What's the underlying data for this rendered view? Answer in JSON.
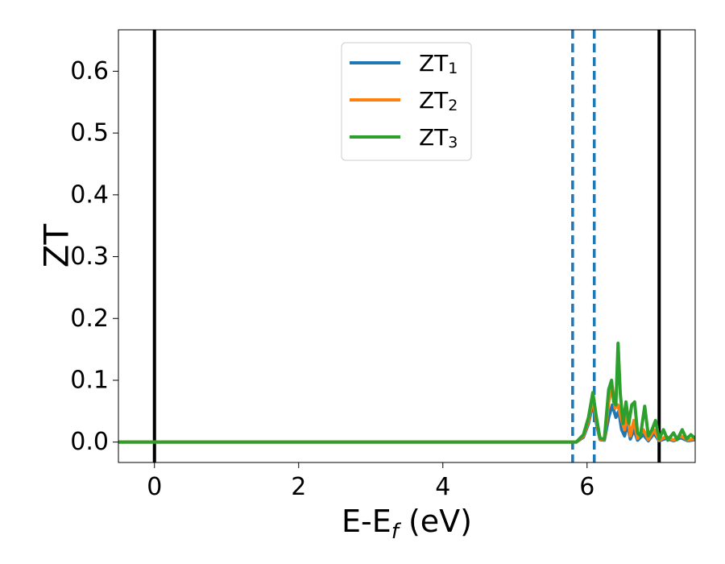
{
  "chart_data": {
    "type": "line",
    "xlabel_main": "E-E",
    "xlabel_sub": "f",
    "xlabel_unit": " (eV)",
    "ylabel": "ZT",
    "xlim": [
      -0.5,
      7.5
    ],
    "ylim": [
      -0.033,
      0.667
    ],
    "xticks": [
      0,
      2,
      4,
      6
    ],
    "xtick_labels": [
      "0",
      "2",
      "4",
      "6"
    ],
    "yticks": [
      0.0,
      0.1,
      0.2,
      0.3,
      0.4,
      0.5,
      0.6
    ],
    "ytick_labels": [
      "0.0",
      "0.1",
      "0.2",
      "0.3",
      "0.4",
      "0.5",
      "0.6"
    ],
    "grid": false,
    "legend_position": "top-center",
    "vlines": [
      {
        "x": 0.0,
        "style": "solid",
        "color": "#000000"
      },
      {
        "x": 7.0,
        "style": "solid",
        "color": "#000000"
      },
      {
        "x": 5.8,
        "style": "dashed",
        "color": "#1f77b4"
      },
      {
        "x": 6.1,
        "style": "dashed",
        "color": "#1f77b4"
      }
    ],
    "series": [
      {
        "name_main": "ZT",
        "name_sub": "1",
        "color": "#1f77b4",
        "points": [
          [
            -0.5,
            0
          ],
          [
            5.6,
            0
          ],
          [
            5.85,
            0.0
          ],
          [
            5.95,
            0.008
          ],
          [
            6.02,
            0.03
          ],
          [
            6.08,
            0.062
          ],
          [
            6.13,
            0.03
          ],
          [
            6.18,
            0.004
          ],
          [
            6.24,
            0.003
          ],
          [
            6.3,
            0.04
          ],
          [
            6.35,
            0.06
          ],
          [
            6.4,
            0.04
          ],
          [
            6.44,
            0.05
          ],
          [
            6.48,
            0.02
          ],
          [
            6.52,
            0.01
          ],
          [
            6.56,
            0.03
          ],
          [
            6.6,
            0.005
          ],
          [
            6.65,
            0.02
          ],
          [
            6.7,
            0.003
          ],
          [
            6.78,
            0.012
          ],
          [
            6.85,
            0.002
          ],
          [
            6.93,
            0.014
          ],
          [
            7.0,
            0.002
          ],
          [
            7.1,
            0.006
          ],
          [
            7.2,
            0.002
          ],
          [
            7.3,
            0.007
          ],
          [
            7.4,
            0.002
          ],
          [
            7.5,
            0.004
          ]
        ]
      },
      {
        "name_main": "ZT",
        "name_sub": "2",
        "color": "#ff7f0e",
        "points": [
          [
            -0.5,
            0
          ],
          [
            5.6,
            0
          ],
          [
            5.85,
            0.0
          ],
          [
            5.95,
            0.01
          ],
          [
            6.02,
            0.035
          ],
          [
            6.08,
            0.07
          ],
          [
            6.13,
            0.035
          ],
          [
            6.18,
            0.005
          ],
          [
            6.24,
            0.004
          ],
          [
            6.3,
            0.065
          ],
          [
            6.35,
            0.09
          ],
          [
            6.39,
            0.055
          ],
          [
            6.43,
            0.06
          ],
          [
            6.47,
            0.04
          ],
          [
            6.52,
            0.02
          ],
          [
            6.56,
            0.045
          ],
          [
            6.6,
            0.01
          ],
          [
            6.65,
            0.035
          ],
          [
            6.7,
            0.006
          ],
          [
            6.78,
            0.02
          ],
          [
            6.85,
            0.004
          ],
          [
            6.93,
            0.02
          ],
          [
            7.0,
            0.003
          ],
          [
            7.1,
            0.009
          ],
          [
            7.2,
            0.003
          ],
          [
            7.3,
            0.01
          ],
          [
            7.4,
            0.003
          ],
          [
            7.5,
            0.006
          ]
        ]
      },
      {
        "name_main": "ZT",
        "name_sub": "3",
        "color": "#2ca02c",
        "points": [
          [
            -0.5,
            0
          ],
          [
            5.6,
            0
          ],
          [
            5.85,
            0.0
          ],
          [
            5.95,
            0.012
          ],
          [
            6.02,
            0.04
          ],
          [
            6.08,
            0.08
          ],
          [
            6.13,
            0.04
          ],
          [
            6.18,
            0.006
          ],
          [
            6.24,
            0.005
          ],
          [
            6.3,
            0.085
          ],
          [
            6.34,
            0.1
          ],
          [
            6.37,
            0.065
          ],
          [
            6.4,
            0.06
          ],
          [
            6.43,
            0.16
          ],
          [
            6.46,
            0.08
          ],
          [
            6.5,
            0.03
          ],
          [
            6.54,
            0.065
          ],
          [
            6.58,
            0.03
          ],
          [
            6.62,
            0.06
          ],
          [
            6.66,
            0.065
          ],
          [
            6.7,
            0.015
          ],
          [
            6.74,
            0.01
          ],
          [
            6.8,
            0.058
          ],
          [
            6.85,
            0.01
          ],
          [
            6.9,
            0.02
          ],
          [
            6.95,
            0.035
          ],
          [
            7.0,
            0.005
          ],
          [
            7.06,
            0.02
          ],
          [
            7.12,
            0.003
          ],
          [
            7.2,
            0.015
          ],
          [
            7.25,
            0.004
          ],
          [
            7.32,
            0.02
          ],
          [
            7.38,
            0.005
          ],
          [
            7.44,
            0.012
          ],
          [
            7.5,
            0.006
          ]
        ]
      }
    ]
  }
}
